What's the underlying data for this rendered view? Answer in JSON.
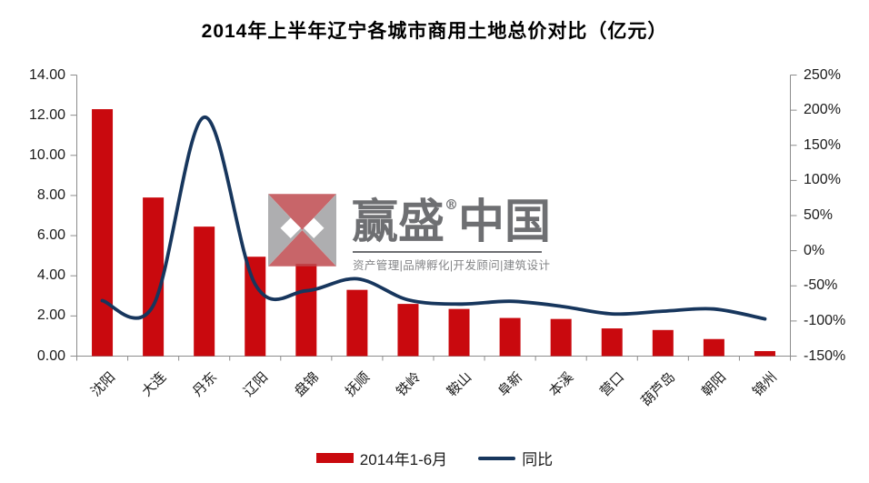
{
  "title": "2014年上半年辽宁各城市商用土地总价对比（亿元）",
  "legend": {
    "items": [
      {
        "label": "2014年1-6月",
        "type": "bar"
      },
      {
        "label": "同比",
        "type": "line"
      }
    ]
  },
  "watermark": {
    "brand_left": "赢盛",
    "reg_mark": "®",
    "brand_right": "中国",
    "tagline": "资产管理|品牌孵化|开发顾问|建筑设计"
  },
  "colors": {
    "bar": "#c9090e",
    "line": "#17365d",
    "axis": "#8c8c8c",
    "text": "#1a1a1a",
    "wm_red": "#bf4b50",
    "wm_gray": "#a1a1a3",
    "wm_text": "#55565a",
    "wm_tagline": "#6e6f72"
  },
  "chart_data": {
    "type": "bar",
    "subtype": "combo bar + smooth line, dual axis",
    "title": "2014年上半年辽宁各城市商用土地总价对比（亿元）",
    "categories": [
      "沈阳",
      "大连",
      "丹东",
      "辽阳",
      "盘锦",
      "抚顺",
      "铁岭",
      "鞍山",
      "阜新",
      "本溪",
      "营口",
      "葫芦岛",
      "朝阳",
      "锦州"
    ],
    "series": [
      {
        "name": "2014年1-6月",
        "type": "bar",
        "axis": "left",
        "unit": "亿元",
        "values": [
          12.3,
          7.9,
          6.45,
          4.95,
          4.6,
          3.3,
          2.6,
          2.35,
          1.9,
          1.85,
          1.38,
          1.3,
          0.85,
          0.25
        ]
      },
      {
        "name": "同比",
        "type": "line",
        "axis": "right",
        "unit": "%",
        "values": [
          -71,
          -78,
          190,
          -48,
          -57,
          -40,
          -70,
          -76,
          -72,
          -79,
          -90,
          -86,
          -83,
          -97
        ]
      }
    ],
    "left_axis": {
      "min": 0,
      "max": 14,
      "step": 2,
      "tick_labels": [
        "0.00",
        "2.00",
        "4.00",
        "6.00",
        "8.00",
        "10.00",
        "12.00",
        "14.00"
      ]
    },
    "right_axis": {
      "min": -150,
      "max": 250,
      "step": 50,
      "tick_labels": [
        "-150%",
        "-100%",
        "-50%",
        "0%",
        "50%",
        "100%",
        "150%",
        "200%",
        "250%"
      ]
    },
    "grid": false,
    "legend_position": "bottom"
  }
}
